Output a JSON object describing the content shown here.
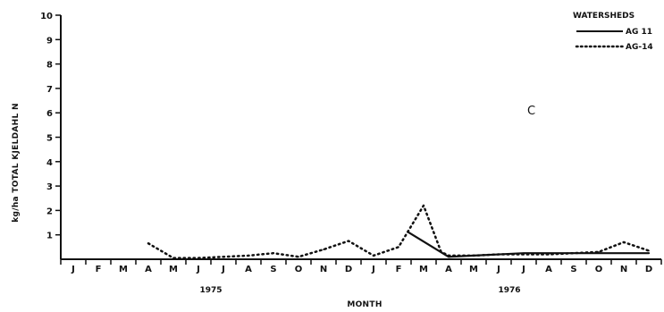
{
  "chart_data": {
    "type": "line",
    "panel_label": "C",
    "ylabel": "kg/ha TOTAL KJELDAHL N",
    "xlabel": "MONTH",
    "ylim": [
      0,
      10
    ],
    "yticks": [
      "1",
      "2",
      "3",
      "4",
      "5",
      "6",
      "7",
      "8",
      "9",
      "10"
    ],
    "x_categories": [
      "J",
      "F",
      "M",
      "A",
      "M",
      "J",
      "J",
      "A",
      "S",
      "O",
      "N",
      "D",
      "J",
      "F",
      "M",
      "A",
      "M",
      "J",
      "J",
      "A",
      "S",
      "O",
      "N",
      "D"
    ],
    "year_labels": [
      "1975",
      "1976"
    ],
    "legend_title": "WATERSHEDS",
    "legend_position": "top-right",
    "grid": false,
    "series": [
      {
        "name": "AG 11",
        "style": "solid",
        "points": [
          [
            13.4,
            1.1
          ],
          [
            15.0,
            0.1
          ],
          [
            16.0,
            0.15
          ],
          [
            17.0,
            0.2
          ],
          [
            18.0,
            0.25
          ],
          [
            19.0,
            0.25
          ],
          [
            20.0,
            0.25
          ],
          [
            21.0,
            0.25
          ],
          [
            22.0,
            0.25
          ],
          [
            23.0,
            0.25
          ]
        ]
      },
      {
        "name": "AG-14",
        "style": "dotted",
        "points": [
          [
            3.0,
            0.65
          ],
          [
            4.0,
            0.05
          ],
          [
            5.0,
            0.05
          ],
          [
            6.0,
            0.1
          ],
          [
            7.0,
            0.15
          ],
          [
            8.0,
            0.25
          ],
          [
            9.0,
            0.1
          ],
          [
            10.0,
            0.4
          ],
          [
            11.0,
            0.75
          ],
          [
            12.0,
            0.15
          ],
          [
            13.0,
            0.5
          ],
          [
            14.0,
            2.2
          ],
          [
            14.7,
            0.3
          ],
          [
            15.0,
            0.15
          ],
          [
            16.0,
            0.15
          ],
          [
            17.0,
            0.2
          ],
          [
            18.0,
            0.2
          ],
          [
            19.0,
            0.2
          ],
          [
            20.0,
            0.25
          ],
          [
            21.0,
            0.3
          ],
          [
            22.0,
            0.7
          ],
          [
            23.0,
            0.35
          ]
        ]
      }
    ]
  }
}
